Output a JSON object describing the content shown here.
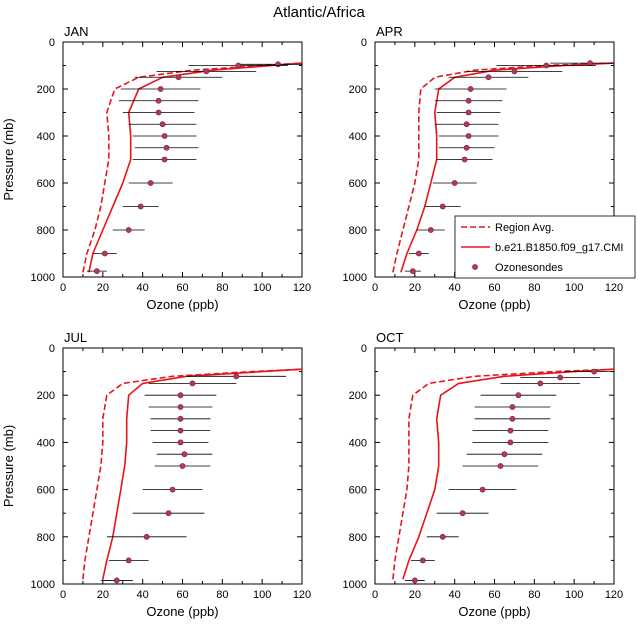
{
  "figure_title": "Atlantic/Africa",
  "colors": {
    "region": "#e8141c",
    "model": "#e8141c",
    "sonde_fill": "#b03a5e",
    "sonde_edge": "#7a1f3c",
    "errbar": "#000000"
  },
  "chart_data": [
    {
      "type": "line",
      "title": "JAN",
      "xlabel": "Ozone (ppb)",
      "ylabel": "Pressure (mb)",
      "xlim": [
        0,
        120
      ],
      "ylim": [
        1000,
        0
      ],
      "xticks": [
        "0",
        "20",
        "40",
        "60",
        "80",
        "100",
        "120"
      ],
      "yticks": [
        "0",
        "200",
        "400",
        "600",
        "800",
        "1000"
      ],
      "region_avg": {
        "pressure": [
          980,
          900,
          800,
          700,
          600,
          500,
          400,
          300,
          200,
          150,
          120,
          100,
          90
        ],
        "ozone": [
          10,
          12,
          16,
          19,
          21,
          23,
          23,
          22,
          26,
          38,
          65,
          100,
          120
        ]
      },
      "model": {
        "pressure": [
          980,
          900,
          800,
          700,
          600,
          500,
          400,
          300,
          200,
          150,
          120,
          100,
          90
        ],
        "ozone": [
          13,
          15,
          20,
          25,
          30,
          34,
          34,
          33,
          38,
          50,
          75,
          105,
          120
        ]
      },
      "sondes": {
        "pressure": [
          95,
          100,
          125,
          150,
          200,
          250,
          300,
          350,
          400,
          450,
          500,
          600,
          700,
          800,
          900,
          975
        ],
        "ozone": [
          108,
          88,
          72,
          58,
          49,
          48,
          48,
          50,
          51,
          52,
          51,
          44,
          39,
          33,
          21,
          17
        ],
        "err": [
          20,
          25,
          25,
          22,
          20,
          20,
          18,
          17,
          16,
          16,
          16,
          11,
          9,
          8,
          6,
          5
        ]
      }
    },
    {
      "type": "line",
      "title": "APR",
      "xlabel": "Ozone (ppb)",
      "ylabel": "",
      "xlim": [
        0,
        120
      ],
      "ylim": [
        1000,
        0
      ],
      "xticks": [
        "0",
        "20",
        "40",
        "60",
        "80",
        "100",
        "120"
      ],
      "yticks": [
        "0",
        "200",
        "400",
        "600",
        "800",
        "1000"
      ],
      "region_avg": {
        "pressure": [
          980,
          900,
          800,
          700,
          600,
          500,
          400,
          300,
          200,
          150,
          120,
          100,
          90
        ],
        "ozone": [
          9,
          11,
          14,
          17,
          20,
          22,
          22,
          22,
          23,
          30,
          50,
          85,
          120
        ]
      },
      "model": {
        "pressure": [
          980,
          900,
          800,
          700,
          600,
          500,
          400,
          300,
          200,
          150,
          120,
          100,
          90
        ],
        "ozone": [
          13,
          16,
          21,
          25,
          28,
          31,
          31,
          30,
          32,
          40,
          60,
          95,
          120
        ]
      },
      "sondes": {
        "pressure": [
          90,
          100,
          125,
          150,
          200,
          250,
          300,
          350,
          400,
          450,
          500,
          600,
          700,
          800,
          900,
          975
        ],
        "ozone": [
          108,
          86,
          70,
          57,
          48,
          47,
          47,
          46,
          47,
          46,
          45,
          40,
          34,
          28,
          22,
          19
        ],
        "err": [
          20,
          25,
          24,
          20,
          18,
          17,
          16,
          16,
          15,
          14,
          14,
          11,
          9,
          7,
          5,
          4
        ]
      },
      "legend": {
        "position": "bottom-right",
        "entries": [
          "Region Avg.",
          "b.e21.B1850.f09_g17.CMI",
          "Ozonesondes"
        ]
      }
    },
    {
      "type": "line",
      "title": "JUL",
      "xlabel": "Ozone (ppb)",
      "ylabel": "Pressure (mb)",
      "xlim": [
        0,
        120
      ],
      "ylim": [
        1000,
        0
      ],
      "xticks": [
        "0",
        "20",
        "40",
        "60",
        "80",
        "100",
        "120"
      ],
      "yticks": [
        "0",
        "200",
        "400",
        "600",
        "800",
        "1000"
      ],
      "region_avg": {
        "pressure": [
          980,
          900,
          800,
          700,
          600,
          500,
          400,
          300,
          200,
          150,
          120,
          100,
          90
        ],
        "ozone": [
          10,
          11,
          13,
          15,
          17,
          19,
          20,
          20,
          22,
          30,
          55,
          95,
          120
        ]
      },
      "model": {
        "pressure": [
          980,
          900,
          800,
          700,
          600,
          500,
          400,
          300,
          200,
          150,
          120,
          100,
          90
        ],
        "ozone": [
          20,
          22,
          25,
          27,
          29,
          31,
          32,
          32,
          33,
          40,
          62,
          100,
          120
        ]
      },
      "sondes": {
        "pressure": [
          120,
          150,
          200,
          250,
          300,
          350,
          400,
          450,
          500,
          600,
          700,
          800,
          900,
          985
        ],
        "ozone": [
          87,
          65,
          59,
          59,
          59,
          59,
          59,
          61,
          60,
          55,
          53,
          42,
          33,
          27
        ],
        "err": [
          25,
          22,
          18,
          16,
          15,
          15,
          14,
          14,
          14,
          15,
          18,
          20,
          10,
          8
        ]
      }
    },
    {
      "type": "line",
      "title": "OCT",
      "xlabel": "Ozone (ppb)",
      "ylabel": "",
      "xlim": [
        0,
        120
      ],
      "ylim": [
        1000,
        0
      ],
      "xticks": [
        "0",
        "20",
        "40",
        "60",
        "80",
        "100",
        "120"
      ],
      "yticks": [
        "0",
        "200",
        "400",
        "600",
        "800",
        "1000"
      ],
      "region_avg": {
        "pressure": [
          980,
          900,
          800,
          700,
          600,
          500,
          400,
          300,
          200,
          150,
          120,
          100,
          90
        ],
        "ozone": [
          9,
          10,
          12,
          14,
          16,
          17,
          17,
          17,
          19,
          27,
          50,
          90,
          120
        ]
      },
      "model": {
        "pressure": [
          980,
          900,
          800,
          700,
          600,
          500,
          400,
          300,
          200,
          150,
          120,
          100,
          90
        ],
        "ozone": [
          14,
          17,
          22,
          26,
          30,
          32,
          32,
          31,
          33,
          42,
          65,
          100,
          120
        ]
      },
      "sondes": {
        "pressure": [
          100,
          125,
          150,
          200,
          250,
          300,
          350,
          400,
          450,
          500,
          600,
          700,
          800,
          900,
          985
        ],
        "ozone": [
          110,
          93,
          83,
          72,
          69,
          69,
          68,
          68,
          65,
          63,
          54,
          44,
          34,
          24,
          20
        ],
        "err": [
          15,
          20,
          20,
          19,
          19,
          19,
          19,
          19,
          19,
          19,
          17,
          13,
          8,
          6,
          5
        ]
      }
    }
  ]
}
